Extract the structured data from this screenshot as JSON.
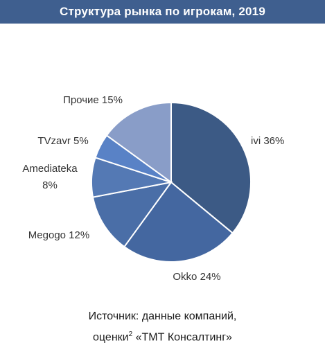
{
  "header": {
    "title": "Структура рынка по игрокам, 2019",
    "background": "#3F5F8F"
  },
  "chart_data": {
    "type": "pie",
    "title": "Структура рынка по игрокам, 2019",
    "slices": [
      {
        "name": "ivi",
        "value": 36,
        "color": "#3C5A85"
      },
      {
        "name": "Okko",
        "value": 24,
        "color": "#4467A0"
      },
      {
        "name": "Megogo",
        "value": 12,
        "color": "#4A6EA7"
      },
      {
        "name": "Amediateka",
        "value": 8,
        "color": "#5479B4"
      },
      {
        "name": "TVzavr",
        "value": 5,
        "color": "#5982C6"
      },
      {
        "name": "Прочие",
        "value": 15,
        "color": "#899DC8"
      }
    ],
    "labels": [
      {
        "lines": [
          "ivi 36%"
        ]
      },
      {
        "lines": [
          "Okko 24%"
        ]
      },
      {
        "lines": [
          "Megogo 12%"
        ]
      },
      {
        "lines": [
          "Amediateka",
          "8%"
        ]
      },
      {
        "lines": [
          "TVzavr 5%"
        ]
      },
      {
        "lines": [
          "Прочие 15%"
        ]
      }
    ]
  },
  "source": {
    "line1": "Источник: данные компаний,",
    "line2_before": "оценки",
    "line2_sup": "2",
    "line2_after": " «ТМТ Консалтинг»"
  }
}
